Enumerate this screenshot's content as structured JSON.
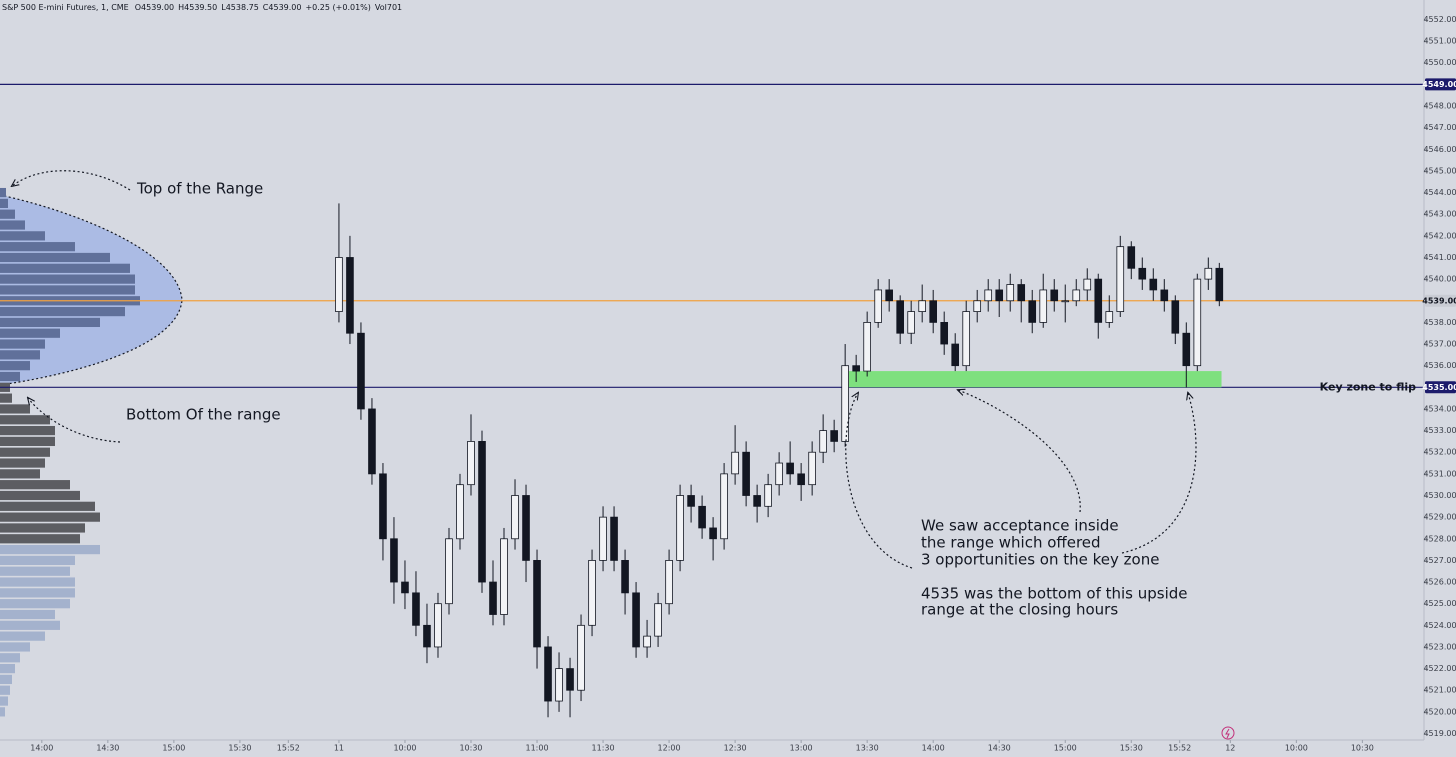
{
  "chart_data": {
    "type": "candlestick",
    "title": "S&P 500 E-mini Futures, 1, CME",
    "header_values": [
      "O4539.00",
      "H4539.50",
      "L4538.75",
      "C4539.00",
      "+0.25 (+0.01%)",
      "Vol701"
    ],
    "ylim": [
      4518.7,
      4552.9
    ],
    "xlim": [
      -19,
      628
    ],
    "yticks": [
      {
        "value": 4552,
        "label": "4552.00"
      },
      {
        "value": 4551,
        "label": "4551.00"
      },
      {
        "value": 4550,
        "label": "4550.00"
      },
      {
        "value": 4548,
        "label": "4548.00"
      },
      {
        "value": 4547,
        "label": "4547.00"
      },
      {
        "value": 4546,
        "label": "4546.00"
      },
      {
        "value": 4545,
        "label": "4545.00"
      },
      {
        "value": 4544,
        "label": "4544.00"
      },
      {
        "value": 4543,
        "label": "4543.00"
      },
      {
        "value": 4542,
        "label": "4542.00"
      },
      {
        "value": 4541,
        "label": "4541.00"
      },
      {
        "value": 4540,
        "label": "4540.00"
      },
      {
        "value": 4538,
        "label": "4538.00"
      },
      {
        "value": 4537,
        "label": "4537.00"
      },
      {
        "value": 4536,
        "label": "4536.00"
      },
      {
        "value": 4534,
        "label": "4534.00"
      },
      {
        "value": 4533,
        "label": "4533.00"
      },
      {
        "value": 4532,
        "label": "4532.00"
      },
      {
        "value": 4531,
        "label": "4531.00"
      },
      {
        "value": 4530,
        "label": "4530.00"
      },
      {
        "value": 4529,
        "label": "4529.00"
      },
      {
        "value": 4528,
        "label": "4528.00"
      },
      {
        "value": 4527,
        "label": "4527.00"
      },
      {
        "value": 4526,
        "label": "4526.00"
      },
      {
        "value": 4525,
        "label": "4525.00"
      },
      {
        "value": 4524,
        "label": "4524.00"
      },
      {
        "value": 4523,
        "label": "4523.00"
      },
      {
        "value": 4522,
        "label": "4522.00"
      },
      {
        "value": 4521,
        "label": "4521.00"
      },
      {
        "value": 4520,
        "label": "4520.00"
      },
      {
        "value": 4519,
        "label": "4519.00"
      }
    ],
    "xticks": [
      {
        "value": 0,
        "label": "14:00"
      },
      {
        "value": 30,
        "label": "14:30"
      },
      {
        "value": 60,
        "label": "15:00"
      },
      {
        "value": 90,
        "label": "15:30"
      },
      {
        "value": 112,
        "label": "15:52"
      },
      {
        "value": 135,
        "label": "11"
      },
      {
        "value": 165,
        "label": "10:00"
      },
      {
        "value": 195,
        "label": "10:30"
      },
      {
        "value": 225,
        "label": "11:00"
      },
      {
        "value": 255,
        "label": "11:30"
      },
      {
        "value": 285,
        "label": "12:00"
      },
      {
        "value": 315,
        "label": "12:30"
      },
      {
        "value": 345,
        "label": "13:00"
      },
      {
        "value": 375,
        "label": "13:30"
      },
      {
        "value": 405,
        "label": "14:00"
      },
      {
        "value": 435,
        "label": "14:30"
      },
      {
        "value": 465,
        "label": "15:00"
      },
      {
        "value": 495,
        "label": "15:30"
      },
      {
        "value": 517,
        "label": "15:52"
      },
      {
        "value": 540,
        "label": "12"
      },
      {
        "value": 570,
        "label": "10:00"
      },
      {
        "value": 600,
        "label": "10:30"
      }
    ],
    "up_color": "#f2f3f6",
    "down_color": "#131722",
    "wick_color": "#131722",
    "candles": {
      "x": [
        135,
        140,
        145,
        150,
        155,
        160,
        165,
        170,
        175,
        180,
        185,
        190,
        195,
        200,
        205,
        210,
        215,
        220,
        225,
        230,
        235,
        240,
        245,
        250,
        255,
        260,
        265,
        270,
        275,
        280,
        285,
        290,
        295,
        300,
        305,
        310,
        315,
        320,
        325,
        330,
        335,
        340,
        345,
        350,
        355,
        360,
        365,
        370,
        375,
        380,
        385,
        390,
        395,
        400,
        405,
        410,
        415,
        420,
        425,
        430,
        435,
        440,
        445,
        450,
        455,
        460,
        465,
        470,
        475,
        480,
        485,
        490,
        495,
        500,
        505,
        510,
        515,
        520,
        525,
        530,
        535
      ],
      "open": [
        4538.5,
        4541,
        4537.5,
        4534,
        4531,
        4528,
        4526,
        4525.5,
        4524,
        4523,
        4525,
        4528,
        4530.5,
        4532.5,
        4526,
        4524.5,
        4528,
        4530,
        4527,
        4523,
        4520.5,
        4522,
        4521,
        4524,
        4527,
        4529,
        4527,
        4525.5,
        4523,
        4523.5,
        4525,
        4527,
        4530,
        4529.5,
        4528.5,
        4528,
        4531,
        4532,
        4530,
        4529.5,
        4530.5,
        4531.5,
        4531,
        4530.5,
        4532,
        4533,
        4532.5,
        4536,
        4535.75,
        4538,
        4539.5,
        4539,
        4537.5,
        4538.5,
        4539,
        4538,
        4537,
        4536,
        4538.5,
        4539,
        4539.5,
        4539,
        4539.75,
        4539,
        4538,
        4539.5,
        4539,
        4539,
        4539.5,
        4540,
        4538,
        4538.5,
        4541.5,
        4540.5,
        4540,
        4539.5,
        4539,
        4537.5,
        4536,
        4540,
        4540.5
      ],
      "high": [
        4543.5,
        4542,
        4538,
        4534.5,
        4531.5,
        4529,
        4527,
        4526.5,
        4525,
        4525.5,
        4528.5,
        4531,
        4533.75,
        4533,
        4527,
        4528.5,
        4530.75,
        4530.5,
        4527.5,
        4523.5,
        4522.75,
        4522.5,
        4524.5,
        4527.5,
        4529.5,
        4529.5,
        4527.5,
        4526,
        4524.25,
        4525.5,
        4527.5,
        4530.5,
        4530.5,
        4530,
        4529,
        4531.5,
        4533.25,
        4532.5,
        4530.5,
        4531,
        4532,
        4532.5,
        4531.5,
        4532.5,
        4533.75,
        4533.5,
        4537,
        4536.5,
        4538.5,
        4540,
        4540,
        4539.25,
        4539,
        4539.75,
        4539.5,
        4538.5,
        4537.5,
        4539,
        4539.5,
        4540,
        4540,
        4540.25,
        4540,
        4539.5,
        4540.25,
        4540,
        4539.75,
        4540,
        4540.5,
        4540.25,
        4539.25,
        4542,
        4541.75,
        4541,
        4540.5,
        4540,
        4539.25,
        4538,
        4540.25,
        4541,
        4540.75
      ],
      "low": [
        4538,
        4537,
        4533.5,
        4530.5,
        4527,
        4525,
        4524.75,
        4523.5,
        4522.25,
        4522.5,
        4524.5,
        4527.5,
        4530,
        4525.5,
        4524,
        4524,
        4527.5,
        4526,
        4522,
        4519.75,
        4520,
        4519.75,
        4520.5,
        4523.5,
        4526.5,
        4526.5,
        4524.5,
        4522.5,
        4522.5,
        4523,
        4524.5,
        4526.5,
        4528.75,
        4528,
        4527,
        4527.5,
        4530.5,
        4529.5,
        4528.75,
        4529,
        4530,
        4530.5,
        4529.75,
        4530,
        4531.5,
        4532,
        4532.25,
        4535.25,
        4535.5,
        4537.75,
        4538.5,
        4537,
        4537,
        4538,
        4537.5,
        4536.5,
        4535.75,
        4535.75,
        4538,
        4538.5,
        4538.25,
        4538.5,
        4538,
        4537.5,
        4537.75,
        4538.5,
        4538,
        4538.75,
        4539,
        4537.25,
        4537.75,
        4538.25,
        4540,
        4539.5,
        4539,
        4538.5,
        4537,
        4535,
        4535.75,
        4539.5,
        4538.75
      ],
      "close": [
        4541,
        4537.5,
        4534,
        4531,
        4528,
        4526,
        4525.5,
        4524,
        4523,
        4525,
        4528,
        4530.5,
        4532.5,
        4526,
        4524.5,
        4528,
        4530,
        4527,
        4523,
        4520.5,
        4522,
        4521,
        4524,
        4527,
        4529,
        4527,
        4525.5,
        4523,
        4523.5,
        4525,
        4527,
        4530,
        4529.5,
        4528.5,
        4528,
        4531,
        4532,
        4530,
        4529.5,
        4530.5,
        4531.5,
        4531,
        4530.5,
        4532,
        4533,
        4532.5,
        4536,
        4535.75,
        4538,
        4539.5,
        4539,
        4537.5,
        4538.5,
        4539,
        4538,
        4537,
        4536,
        4538.5,
        4539,
        4539.5,
        4539,
        4539.75,
        4539,
        4538,
        4539.5,
        4539,
        4539,
        4539.5,
        4540,
        4538,
        4538.5,
        4541.5,
        4540.5,
        4540,
        4539.5,
        4539,
        4537.5,
        4536,
        4540,
        4540.5,
        4539
      ]
    },
    "volume_profile": {
      "xlim": [
        0,
        150
      ],
      "row_height": 0.5,
      "groups": [
        {
          "color": "#60709a",
          "prices": [
            4544,
            4543.5,
            4543,
            4542.5,
            4542,
            4541.5,
            4541,
            4540.5,
            4540,
            4539.5,
            4539,
            4538.5,
            4538,
            4537.5,
            4537,
            4536.5,
            4536,
            4535.5
          ],
          "values": [
            6,
            8,
            15,
            25,
            45,
            75,
            110,
            130,
            135,
            135,
            140,
            125,
            100,
            60,
            45,
            40,
            30,
            20
          ]
        },
        {
          "color": "#5c5d62",
          "prices": [
            4535,
            4534.5,
            4534,
            4533.5,
            4533,
            4532.5,
            4532,
            4531.5,
            4531,
            4530.5,
            4530,
            4529.5,
            4529,
            4528.5,
            4528
          ],
          "values": [
            10,
            12,
            30,
            50,
            55,
            55,
            50,
            45,
            40,
            70,
            80,
            95,
            100,
            85,
            80
          ]
        },
        {
          "color": "#a4b2cd",
          "prices": [
            4527.5,
            4527,
            4526.5,
            4526,
            4525.5,
            4525,
            4524.5,
            4524,
            4523.5,
            4523,
            4522.5,
            4522,
            4521.5,
            4521,
            4520.5,
            4520
          ],
          "values": [
            100,
            75,
            70,
            75,
            75,
            70,
            55,
            60,
            45,
            30,
            20,
            15,
            12,
            10,
            8,
            5
          ]
        }
      ]
    },
    "levels": [
      {
        "value": 4549,
        "label": "4549.00",
        "color": "#1c1b6b",
        "label_bg": "#1c1b6b",
        "label_color": "#ffffff"
      },
      {
        "value": 4539,
        "label": "4539.00",
        "color": "#f0a040",
        "label_bg": "#c9ccd4",
        "label_color": "#131722"
      },
      {
        "value": 4535,
        "label": "4535.00",
        "color": "#1c1b6b",
        "label_bg": "#1c1b6b",
        "label_color": "#ffffff"
      }
    ],
    "zone": {
      "x": [
        366,
        536
      ],
      "y": [
        4535,
        4535.75
      ],
      "color": "#7ee07e"
    },
    "annotations": {
      "top": "Top of the Range",
      "bottom": "Bottom Of the range",
      "key_zone": "Key zone to flip",
      "note": [
        "We saw acceptance inside",
        "the range which offered",
        "3 opportunities on the key zone",
        "4535 was the bottom of this upside",
        "range at the closing hours"
      ]
    }
  }
}
